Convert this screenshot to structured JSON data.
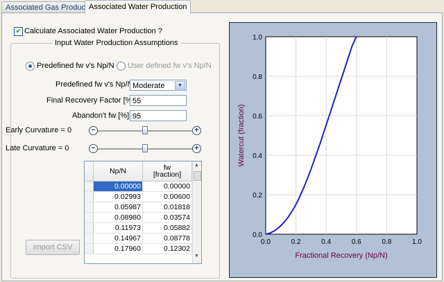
{
  "tabs": [
    {
      "label": "Associated Gas Production"
    },
    {
      "label": "Associated Water Production"
    }
  ],
  "calc_checkbox": {
    "label": "Calculate Associated Water Production ?",
    "checked": true
  },
  "assumptions": {
    "title": "Input Water Production Assumptions",
    "radio_predefined": "Predefined fw v's Np/N",
    "radio_user": "User defined fw v's Np/N",
    "predefined_label": "Predefined fw v's Np/N",
    "predefined_value": "Moderate",
    "final_rf_label": "Final Recovery Factor [%]",
    "final_rf_value": "55",
    "abandon_label": "Abandon't fw [%]",
    "abandon_value": "95",
    "early_label": "Early Curvature = 0",
    "late_label": "Late Curvature = 0",
    "early_level": 0.5,
    "late_level": 0.5
  },
  "table": {
    "col1": "Np/N",
    "col2_line1": "fw",
    "col2_line2": "[fraction]",
    "rows": [
      [
        "0.00000",
        "0.00000"
      ],
      [
        "0.02993",
        "0.00600"
      ],
      [
        "0.05987",
        "0.01818"
      ],
      [
        "0.08980",
        "0.03574"
      ],
      [
        "0.11973",
        "0.05882"
      ],
      [
        "0.14967",
        "0.08778"
      ],
      [
        "0.17960",
        "0.12302"
      ]
    ]
  },
  "import_button": "Import CSV",
  "colors": {
    "curve": "#1f1fc7",
    "axis_label": "#6b0040",
    "plot_bg": "#b3c1d6"
  },
  "chart_data": {
    "type": "line",
    "xlabel": "Fractional Recovery (Np/N)",
    "ylabel": "Watercut (fraction)",
    "xlim": [
      0,
      1
    ],
    "ylim": [
      0,
      1
    ],
    "x_ticks": [
      "0.0",
      "0.2",
      "0.4",
      "0.6",
      "0.8",
      "1.0"
    ],
    "y_ticks": [
      "0.0",
      "0.2",
      "0.4",
      "0.6",
      "0.8",
      "1.0"
    ],
    "grid": true,
    "series": [
      {
        "x": [
          0.0,
          0.03,
          0.06,
          0.09,
          0.12,
          0.15,
          0.18,
          0.21,
          0.24,
          0.27,
          0.3,
          0.33,
          0.36,
          0.39,
          0.42,
          0.45,
          0.48,
          0.51,
          0.54,
          0.57,
          0.59,
          0.6
        ],
        "y": [
          0.0,
          0.006,
          0.018,
          0.036,
          0.059,
          0.088,
          0.123,
          0.165,
          0.215,
          0.27,
          0.33,
          0.395,
          0.46,
          0.53,
          0.6,
          0.67,
          0.74,
          0.81,
          0.88,
          0.95,
          0.985,
          1.0
        ]
      }
    ]
  }
}
